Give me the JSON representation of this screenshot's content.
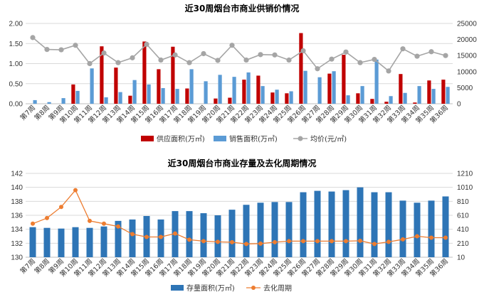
{
  "colors": {
    "supply": "#c00000",
    "sales": "#5b9bd5",
    "price": "#a5a5a5",
    "stock": "#2e75b6",
    "cycle": "#ed7d31",
    "grid": "#d9d9d9",
    "axis": "#bfbfbf"
  },
  "chart_data": [
    {
      "type": "bar",
      "title": "近30周烟台市商业供销价情况",
      "categories": [
        "第7周",
        "第8周",
        "第9周",
        "第10周",
        "第11周",
        "第12周",
        "第13周",
        "第14周",
        "第15周",
        "第16周",
        "第17周",
        "第18周",
        "第19周",
        "第20周",
        "第21周",
        "第22周",
        "第23周",
        "第24周",
        "第25周",
        "第26周",
        "第27周",
        "第28周",
        "第29周",
        "第30周",
        "第31周",
        "第32周",
        "第33周",
        "第34周",
        "第35周",
        "第36周"
      ],
      "y_left": {
        "lim": [
          0,
          2.0
        ],
        "ticks": [
          "0.00",
          "0.50",
          "1.00",
          "1.50",
          "2.00"
        ]
      },
      "y_right": {
        "lim": [
          0,
          25000
        ],
        "ticks": [
          "0",
          "5000",
          "10000",
          "15000",
          "20000",
          "25000"
        ]
      },
      "series": [
        {
          "name": "供应面积(万㎡)",
          "kind": "bar",
          "axis": "left",
          "values": [
            0,
            0,
            0,
            0.48,
            0,
            1.43,
            0.9,
            0.2,
            1.55,
            0.86,
            1.42,
            0.38,
            0,
            0.13,
            0.15,
            0.6,
            0.7,
            0.28,
            0.26,
            1.76,
            0,
            0.75,
            1.22,
            0.26,
            0.12,
            0.05,
            0.74,
            0.03,
            0.58,
            0.6
          ]
        },
        {
          "name": "销售面积(万㎡)",
          "kind": "bar",
          "axis": "left",
          "values": [
            0.09,
            0.04,
            0.14,
            0.32,
            0.88,
            0.16,
            0.29,
            0.59,
            0.48,
            0.39,
            0.37,
            0.86,
            0.56,
            0.72,
            0.67,
            0.78,
            0.44,
            0.35,
            0.31,
            0.82,
            0.66,
            0.81,
            0.21,
            0.44,
            1.1,
            0.19,
            0.27,
            0.44,
            0.37,
            0.42
          ]
        },
        {
          "name": "均价(元/㎡)",
          "kind": "line",
          "axis": "right",
          "values": [
            20600,
            16900,
            16800,
            18200,
            12500,
            15800,
            12800,
            14300,
            18500,
            13600,
            15200,
            12800,
            15600,
            13500,
            18200,
            13600,
            15300,
            15200,
            13600,
            16500,
            10900,
            13900,
            16100,
            12800,
            13800,
            10200,
            17100,
            14800,
            16200,
            15000
          ]
        }
      ]
    },
    {
      "type": "bar",
      "title": "近30周烟台市商业存量及去化周期情况",
      "categories": [
        "第7周",
        "第8周",
        "第9周",
        "第10周",
        "第11周",
        "第12周",
        "第13周",
        "第14周",
        "第15周",
        "第16周",
        "第17周",
        "第18周",
        "第19周",
        "第20周",
        "第21周",
        "第22周",
        "第23周",
        "第24周",
        "第25周",
        "第26周",
        "第27周",
        "第28周",
        "第29周",
        "第30周",
        "第31周",
        "第32周",
        "第33周",
        "第34周",
        "第35周",
        "第36周"
      ],
      "y_left": {
        "lim": [
          130,
          142
        ],
        "ticks": [
          "130",
          "132",
          "134",
          "136",
          "138",
          "140",
          "142"
        ]
      },
      "y_right": {
        "lim": [
          10,
          1210
        ],
        "ticks": [
          "10",
          "210",
          "410",
          "610",
          "810",
          "1010",
          "1210"
        ]
      },
      "series": [
        {
          "name": "存量面积(万㎡)",
          "kind": "bar",
          "axis": "left",
          "values": [
            134.3,
            134.2,
            134.1,
            134.3,
            134.2,
            134.4,
            135.2,
            135.4,
            135.9,
            135.4,
            136.6,
            136.6,
            136.3,
            136.0,
            136.8,
            137.5,
            137.8,
            137.9,
            137.9,
            139.3,
            139.5,
            139.4,
            139.6,
            140.0,
            139.3,
            139.3,
            138.1,
            137.8,
            138.1,
            138.7
          ]
        },
        {
          "name": "去化周期",
          "kind": "line",
          "axis": "right",
          "values": [
            490,
            570,
            730,
            970,
            530,
            490,
            450,
            340,
            300,
            300,
            350,
            260,
            240,
            230,
            225,
            200,
            205,
            225,
            240,
            240,
            240,
            240,
            240,
            245,
            200,
            230,
            265,
            310,
            290,
            290
          ]
        }
      ]
    }
  ]
}
